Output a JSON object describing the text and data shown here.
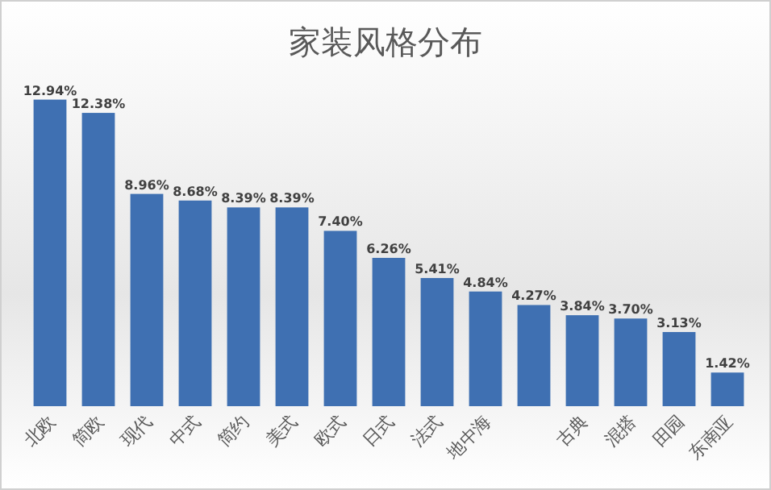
{
  "chart_data": {
    "type": "bar",
    "title": "家装风格分布",
    "categories": [
      "北欧",
      "简欧",
      "现代",
      "中式",
      "简约",
      "美式",
      "欧式",
      "日式",
      "法式",
      "地中海",
      null,
      "古典",
      "混搭",
      "田园",
      "东南亚"
    ],
    "values": [
      12.94,
      12.38,
      8.96,
      8.68,
      8.39,
      8.39,
      7.4,
      6.26,
      5.41,
      4.84,
      4.27,
      3.84,
      3.7,
      3.13,
      1.42
    ],
    "value_labels": [
      "12.94%",
      "12.38%",
      "8.96%",
      "8.68%",
      "8.39%",
      "8.39%",
      "7.40%",
      "6.26%",
      "5.41%",
      "4.84%",
      "4.27%",
      "3.84%",
      "3.70%",
      "3.13%",
      "1.42%"
    ],
    "color": "#3f70b2"
  }
}
